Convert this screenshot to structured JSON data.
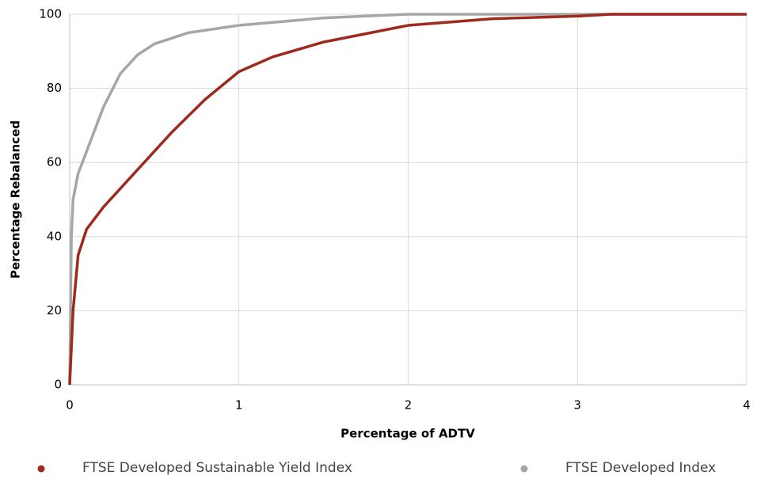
{
  "chart_data": {
    "type": "line",
    "x_label": "Percentage of ADTV",
    "y_label": "Percentage Rebalanced",
    "xlim": [
      0,
      4
    ],
    "xticks": [
      0,
      1,
      2,
      3,
      4
    ],
    "ylim": [
      0,
      100
    ],
    "yticks": [
      0,
      20,
      40,
      60,
      80,
      100
    ],
    "grid": true,
    "legend": "bottom",
    "series": [
      {
        "name": "FTSE Developed Sustainable Yield Index",
        "color": "#9e2a1e",
        "x": [
          0,
          0.02,
          0.05,
          0.1,
          0.2,
          0.4,
          0.6,
          0.8,
          1.0,
          1.2,
          1.5,
          2.0,
          2.5,
          3.0,
          3.2,
          4.0
        ],
        "values": [
          0,
          20,
          35,
          42,
          48,
          58,
          68,
          77,
          84.5,
          88.5,
          92.5,
          97,
          98.8,
          99.5,
          100,
          100
        ]
      },
      {
        "name": "FTSE Developed Index",
        "color": "#a6a6a6",
        "x": [
          0,
          0.005,
          0.01,
          0.02,
          0.05,
          0.1,
          0.2,
          0.3,
          0.4,
          0.5,
          0.7,
          1.0,
          1.5,
          2.0,
          4.0
        ],
        "values": [
          0,
          20,
          40,
          50,
          57,
          63,
          75,
          84,
          89,
          92,
          95,
          97,
          99,
          100,
          100
        ]
      }
    ]
  }
}
